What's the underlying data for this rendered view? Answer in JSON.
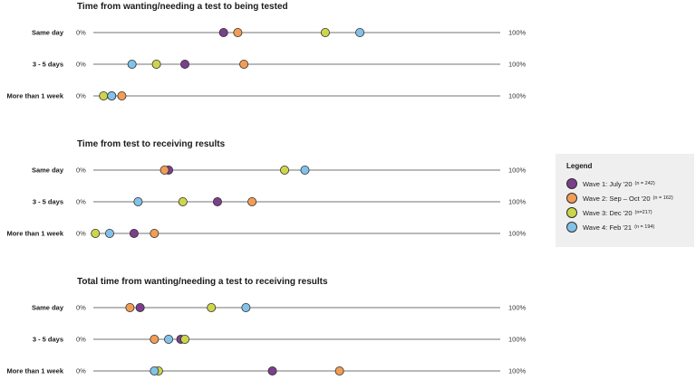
{
  "chart_data": {
    "type": "scatter",
    "axis_min_label": "0%",
    "axis_max_label": "100%",
    "x_range": [
      0,
      100
    ],
    "series": [
      {
        "name": "Wave 1: July '20",
        "n": "(n = 242)",
        "color": "#7b3f8c"
      },
      {
        "name": "Wave 2: Sep – Oct '20",
        "n": "(n = 162)",
        "color": "#f29d55"
      },
      {
        "name": "Wave 3: Dec '20",
        "n": "(n=217)",
        "color": "#cdd64a"
      },
      {
        "name": "Wave 4: Feb '21",
        "n": "(n = 194)",
        "color": "#82c2e8"
      }
    ],
    "panels": [
      {
        "title": "Time from wanting/needing a test to being tested",
        "rows": [
          {
            "label": "Same day",
            "values": [
              32,
              35.5,
              57,
              65.5
            ]
          },
          {
            "label": "3 - 5 days",
            "values": [
              22.5,
              37,
              15.5,
              9.5
            ]
          },
          {
            "label": "More than 1 week",
            "values": [
              4.5,
              7,
              2.5,
              4.5
            ]
          }
        ]
      },
      {
        "title": "Time from test to receiving results",
        "rows": [
          {
            "label": "Same day",
            "values": [
              18.5,
              17.5,
              47,
              52
            ]
          },
          {
            "label": "3 - 5 days",
            "values": [
              30.5,
              39,
              22,
              11
            ]
          },
          {
            "label": "More than 1 week",
            "values": [
              10,
              15,
              0.5,
              4
            ]
          }
        ]
      },
      {
        "title": "Total time from wanting/needing a test to receiving results",
        "rows": [
          {
            "label": "Same day",
            "values": [
              11.5,
              9,
              29,
              37.5
            ]
          },
          {
            "label": "3 - 5 days",
            "values": [
              21.5,
              15,
              22.5,
              18.5
            ]
          },
          {
            "label": "More than 1 week",
            "values": [
              44,
              60.5,
              16,
              15
            ]
          }
        ]
      }
    ]
  },
  "legend": {
    "title": "Legend"
  }
}
